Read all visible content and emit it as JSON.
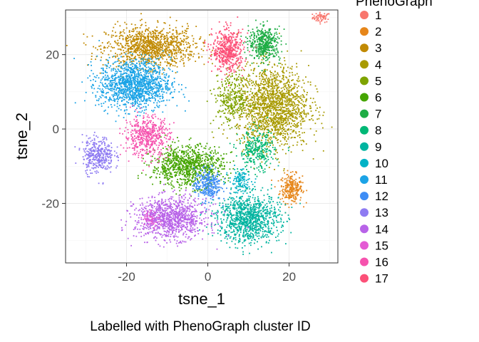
{
  "chart_data": {
    "type": "scatter",
    "xlabel": "tsne_1",
    "ylabel": "tsne_2",
    "caption": "Labelled with PhenoGraph cluster ID",
    "xlim": [
      -35,
      32
    ],
    "ylim": [
      -36,
      32
    ],
    "x_ticks": [
      -20,
      0,
      20
    ],
    "y_ticks": [
      -20,
      0,
      20
    ],
    "x_tick_labels": [
      "-20",
      "0",
      "20"
    ],
    "y_tick_labels": [
      "-20",
      "0",
      "20"
    ],
    "grid": true,
    "legend": {
      "title": "PhenoGraph",
      "position": "right",
      "entries": [
        {
          "label": "1",
          "color": "#F8766D"
        },
        {
          "label": "2",
          "color": "#E6861A"
        },
        {
          "label": "3",
          "color": "#C18A03"
        },
        {
          "label": "4",
          "color": "#A89A00"
        },
        {
          "label": "5",
          "color": "#7EA300"
        },
        {
          "label": "6",
          "color": "#45A500"
        },
        {
          "label": "7",
          "color": "#1EAD45"
        },
        {
          "label": "8",
          "color": "#00B876"
        },
        {
          "label": "9",
          "color": "#00B4A0"
        },
        {
          "label": "10",
          "color": "#00B2C6"
        },
        {
          "label": "11",
          "color": "#1BA3E6"
        },
        {
          "label": "12",
          "color": "#3E8DF5"
        },
        {
          "label": "13",
          "color": "#8E7BF2"
        },
        {
          "label": "14",
          "color": "#B863E8"
        },
        {
          "label": "15",
          "color": "#E45BD4"
        },
        {
          "label": "16",
          "color": "#F653AE"
        },
        {
          "label": "17",
          "color": "#FC5078"
        }
      ]
    },
    "clusters": [
      {
        "id": "1",
        "center": [
          28,
          30
        ],
        "spread": [
          2,
          1.2
        ],
        "n": 60
      },
      {
        "id": "2",
        "center": [
          20.5,
          -16
        ],
        "spread": [
          2.5,
          3.5
        ],
        "n": 260
      },
      {
        "id": "3",
        "center": [
          -14,
          22
        ],
        "spread": [
          10,
          5
        ],
        "n": 1100
      },
      {
        "id": "4",
        "center": [
          16,
          6
        ],
        "spread": [
          8,
          10
        ],
        "n": 1600
      },
      {
        "id": "5",
        "center": [
          6,
          8
        ],
        "spread": [
          4,
          6
        ],
        "n": 300
      },
      {
        "id": "6",
        "center": [
          -5,
          -10
        ],
        "spread": [
          8,
          5
        ],
        "n": 900
      },
      {
        "id": "7",
        "center": [
          14,
          23
        ],
        "spread": [
          3.5,
          4
        ],
        "n": 420
      },
      {
        "id": "8",
        "center": [
          12,
          -6
        ],
        "spread": [
          4,
          5
        ],
        "n": 300
      },
      {
        "id": "9",
        "center": [
          10,
          -24
        ],
        "spread": [
          7,
          6
        ],
        "n": 1000
      },
      {
        "id": "10",
        "center": [
          8,
          -14
        ],
        "spread": [
          2.5,
          3
        ],
        "n": 120
      },
      {
        "id": "11",
        "center": [
          -18,
          12
        ],
        "spread": [
          8,
          6
        ],
        "n": 1300
      },
      {
        "id": "12",
        "center": [
          0,
          -15
        ],
        "spread": [
          3,
          4
        ],
        "n": 300
      },
      {
        "id": "13",
        "center": [
          -27,
          -7
        ],
        "spread": [
          3.5,
          4.5
        ],
        "n": 350
      },
      {
        "id": "14",
        "center": [
          -9,
          -24
        ],
        "spread": [
          8,
          5
        ],
        "n": 1000
      },
      {
        "id": "15",
        "center": [
          -14,
          -24
        ],
        "spread": [
          2,
          2
        ],
        "n": 60
      },
      {
        "id": "16",
        "center": [
          -15,
          -2
        ],
        "spread": [
          5,
          5
        ],
        "n": 500
      },
      {
        "id": "17",
        "center": [
          5,
          21
        ],
        "spread": [
          3.5,
          5
        ],
        "n": 500
      }
    ]
  }
}
